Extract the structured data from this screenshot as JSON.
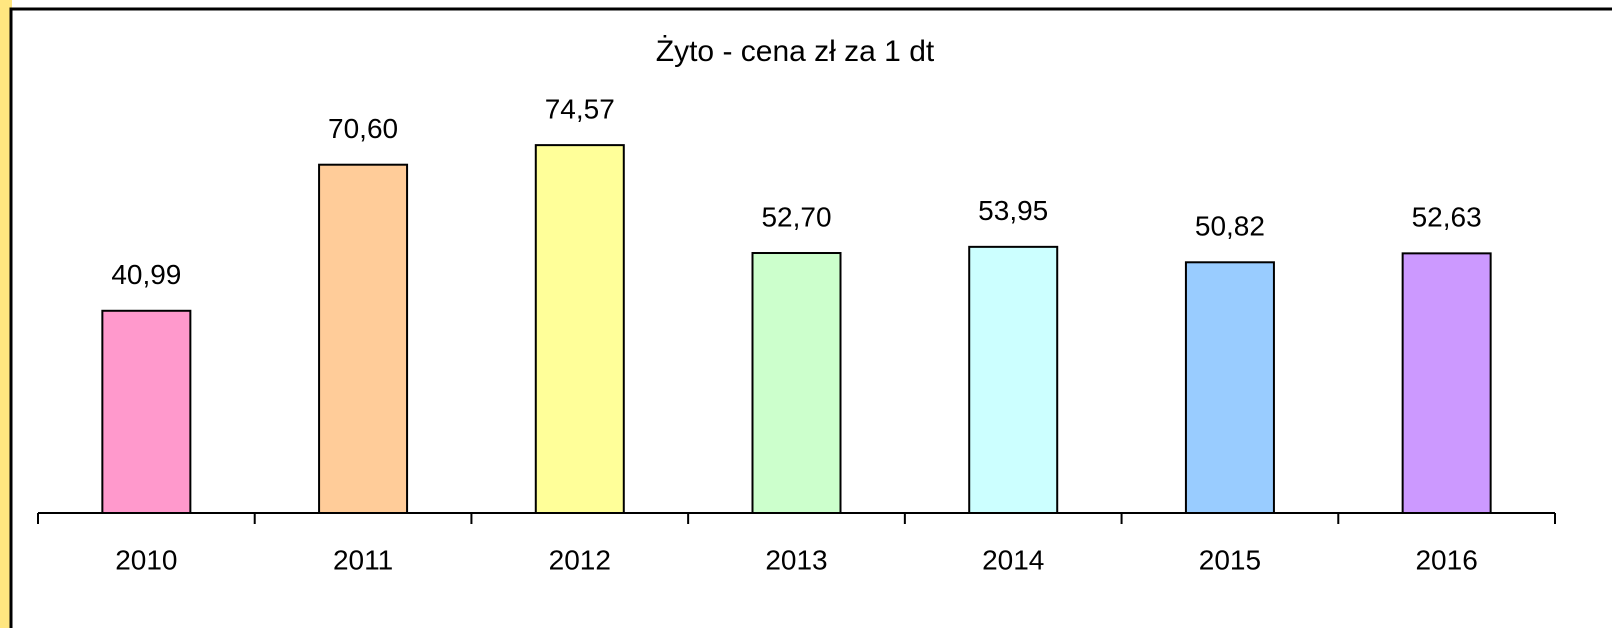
{
  "chart_data": {
    "type": "bar",
    "title": "Żyto - cena zł za 1 dt",
    "categories": [
      "2010",
      "2011",
      "2012",
      "2013",
      "2014",
      "2015",
      "2016"
    ],
    "values": [
      40.99,
      70.6,
      74.57,
      52.7,
      53.95,
      50.82,
      52.63
    ],
    "value_labels": [
      "40,99",
      "70,60",
      "74,57",
      "52,70",
      "53,95",
      "50,82",
      "52,63"
    ],
    "colors": [
      "#ff99cc",
      "#ffcc99",
      "#ffff99",
      "#ccffcc",
      "#ccffff",
      "#99ccff",
      "#cc99ff"
    ],
    "ylim": [
      0,
      90
    ]
  }
}
